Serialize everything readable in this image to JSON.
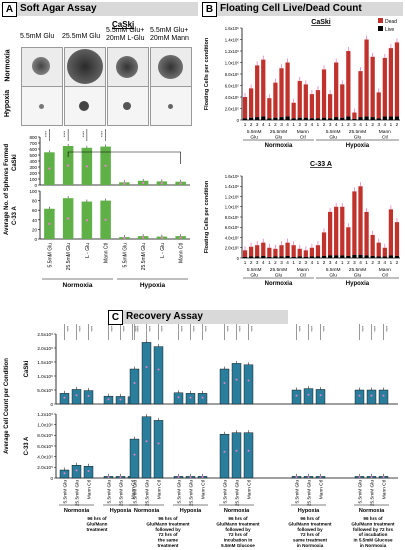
{
  "panel_a": {
    "letter": "A",
    "title": "Soft Agar Assay",
    "cell_line": "CaSki",
    "conditions": [
      "5.5mM Glu",
      "25.5mM Glu",
      "5.5mM Glu+\n20mM L-Glu",
      "5.5mM Glu+\n20mM Mann"
    ],
    "row_labels": [
      "Normoxia",
      "Hypoxia"
    ]
  },
  "panel_b": {
    "letter": "B",
    "title": "Floating Cell Live/Dead Count",
    "legend": [
      "Dead",
      "Live"
    ]
  },
  "panel_c": {
    "letter": "C",
    "title": "Recovery Assay",
    "captions": [
      "96 hrs of Glu/Mann treatment",
      "96 hrs of Glu/Mann treatment followed by 72 hrs of the same treatment",
      "96 hrs of Glu/Mann treatment followed by 72 hrs of incubation in 5.5mM Glucose",
      "96 hrs of Glu/Mann treatment followed by 72 hrs of same treatment in Normoxia",
      "96 hrs of Glu/Mann treatment followed by 72 hrs of incubation in 5.5mM Glucose in Normoxia"
    ]
  },
  "colors": {
    "green": "#5fb046",
    "red": "#c0322b",
    "blue": "#2b7d9c",
    "pink": "#e87fc4"
  },
  "chart_data": [
    {
      "type": "bar",
      "panel": "A",
      "ylabel": "Average No. of Spheres Formed",
      "subplot_label": "CaSki",
      "categories": [
        "5.5mM Glu",
        "25.5mM Glu",
        "L-Glu",
        "Mann Ctl",
        "5.5mM Glu",
        "25.5mM Glu",
        "L-Glu",
        "Mann Ctl"
      ],
      "groups": [
        "Normoxia",
        "Hypoxia"
      ],
      "values": [
        545,
        650,
        620,
        640,
        45,
        70,
        60,
        55
      ],
      "ylim": [
        0,
        800
      ],
      "yticks": [
        0,
        100,
        200,
        300,
        400,
        500,
        600,
        700,
        800
      ],
      "significance": [
        "****",
        "****",
        "****",
        "****"
      ]
    },
    {
      "type": "bar",
      "panel": "A",
      "ylabel": "Average No. of Spheres Formed",
      "subplot_label": "C-33 A",
      "categories": [
        "5.5mM Glu",
        "25.5mM Glu",
        "L - Glu",
        "Mann Ctl",
        "5.5mM Glu",
        "25.5mM Glu",
        "L - Glu",
        "Mann Ctl"
      ],
      "groups": [
        "Normoxia",
        "Hypoxia"
      ],
      "values": [
        63,
        85,
        78,
        80,
        4,
        6,
        5,
        6
      ],
      "ylim": [
        0,
        100
      ],
      "yticks": [
        0,
        20,
        40,
        60,
        80,
        100
      ]
    },
    {
      "type": "bar",
      "panel": "B",
      "subplot_label": "CaSki",
      "ylabel": "Floating Cells per condition",
      "ylim": [
        0,
        1600000
      ],
      "yticks": [
        "0",
        "2.0x10⁵",
        "4.0x10⁵",
        "6.0x10⁵",
        "8.0x10⁵",
        "1.0x10⁶",
        "1.2x10⁶",
        "1.4x10⁶",
        "1.6x10⁶"
      ],
      "group_labels": [
        "5.5mM Glu",
        "25.5mM Glu",
        "Mann Ctl",
        "5.5mM Glu",
        "25.5mM Glu",
        "Mann Ctl"
      ],
      "oxygen": [
        "Normoxia",
        "Hypoxia"
      ],
      "day_ticks": [
        "1",
        "2",
        "3",
        "4"
      ],
      "series": [
        {
          "name": "Dead",
          "values": [
            400000,
            550000,
            950000,
            1050000,
            380000,
            650000,
            900000,
            1000000,
            300000,
            680000,
            620000,
            450000,
            520000,
            880000,
            450000,
            1000000,
            620000,
            1200000,
            130000,
            850000,
            1400000,
            1100000,
            480000,
            1080000,
            1250000,
            1350000
          ]
        },
        {
          "name": "Live",
          "values": [
            30000,
            40000,
            50000,
            60000,
            30000,
            40000,
            50000,
            60000,
            30000,
            40000,
            40000,
            30000,
            30000,
            40000,
            30000,
            50000,
            40000,
            60000,
            20000,
            50000,
            60000,
            50000,
            30000,
            60000,
            60000,
            60000
          ]
        }
      ]
    },
    {
      "type": "bar",
      "panel": "B",
      "subplot_label": "C-33 A",
      "ylabel": "Floating Cells per condition",
      "ylim": [
        0,
        1600000
      ],
      "yticks": [
        "0",
        "2.0x10⁵",
        "4.0x10⁵",
        "6.0x10⁵",
        "8.0x10⁵",
        "1.0x10⁶",
        "1.2x10⁶",
        "1.4x10⁶",
        "1.6x10⁶"
      ],
      "group_labels": [
        "5.5mM Glu",
        "25.5mM Glu",
        "Mann Ctl",
        "5.5mM Glu",
        "25.5mM Glu",
        "Mann Ctl"
      ],
      "oxygen": [
        "Normoxia",
        "Hypoxia"
      ],
      "day_ticks": [
        "1",
        "2",
        "3",
        "4"
      ],
      "series": [
        {
          "name": "Dead",
          "values": [
            150000,
            220000,
            250000,
            300000,
            200000,
            180000,
            250000,
            300000,
            250000,
            180000,
            150000,
            200000,
            250000,
            500000,
            900000,
            1000000,
            1000000,
            600000,
            1300000,
            1400000,
            900000,
            450000,
            300000,
            200000,
            950000,
            700000
          ]
        },
        {
          "name": "Live",
          "values": [
            20000,
            30000,
            30000,
            40000,
            20000,
            30000,
            30000,
            40000,
            20000,
            30000,
            20000,
            30000,
            30000,
            40000,
            50000,
            50000,
            50000,
            40000,
            60000,
            60000,
            50000,
            40000,
            30000,
            30000,
            50000,
            40000
          ]
        }
      ]
    },
    {
      "type": "bar",
      "panel": "C",
      "ylabel": "Average Cell Count per Condition",
      "subplot_label": "CaSki",
      "ylim": [
        0,
        2500000
      ],
      "yticks": [
        "0",
        "5.0x10⁵",
        "1.0x10⁶",
        "1.5x10⁶",
        "2.0x10⁶",
        "2.5x10⁶"
      ],
      "x_labels": [
        "5.5mM Glu",
        "25.5mM Glu",
        "Mann Ctl"
      ],
      "treatment_groups": [
        {
          "oxygen": [
            "Normoxia",
            "Hypoxia"
          ],
          "values": [
            380000,
            520000,
            480000,
            280000,
            270000,
            260000
          ]
        },
        {
          "oxygen": [
            "Normoxia",
            "Hypoxia"
          ],
          "values": [
            1250000,
            2200000,
            2050000,
            400000,
            380000,
            380000
          ]
        },
        {
          "oxygen": [
            "Normoxia"
          ],
          "values": [
            1250000,
            1450000,
            1400000
          ]
        },
        {
          "oxygen": [
            "Hypoxia"
          ],
          "values": [
            500000,
            550000,
            520000
          ]
        },
        {
          "oxygen": [
            "Normoxia"
          ],
          "values": [
            500000,
            500000,
            500000
          ]
        }
      ],
      "significance": "****"
    },
    {
      "type": "bar",
      "panel": "C",
      "ylabel": "Average Cell Count per Condition",
      "subplot_label": "C-33 A",
      "ylim": [
        0,
        1200000
      ],
      "yticks": [
        "0",
        "2.0x10⁵",
        "4.0x10⁵",
        "6.0x10⁵",
        "8.0x10⁵",
        "1.0x10⁶",
        "1.2x10⁶"
      ],
      "x_labels": [
        "5.5mM Glu",
        "25.5mM Glu",
        "Mann Ctl"
      ],
      "treatment_groups": [
        {
          "oxygen": [
            "Normoxia",
            "Hypoxia"
          ],
          "values": [
            150000,
            240000,
            220000,
            30000,
            30000,
            30000
          ]
        },
        {
          "oxygen": [
            "Normoxia",
            "Hypoxia"
          ],
          "values": [
            730000,
            1150000,
            1080000,
            30000,
            30000,
            30000
          ]
        },
        {
          "oxygen": [
            "Normoxia"
          ],
          "values": [
            820000,
            850000,
            850000
          ]
        },
        {
          "oxygen": [
            "Hypoxia"
          ],
          "values": [
            30000,
            30000,
            30000
          ]
        },
        {
          "oxygen": [
            "Normoxia"
          ],
          "values": [
            30000,
            30000,
            30000
          ]
        }
      ]
    }
  ]
}
